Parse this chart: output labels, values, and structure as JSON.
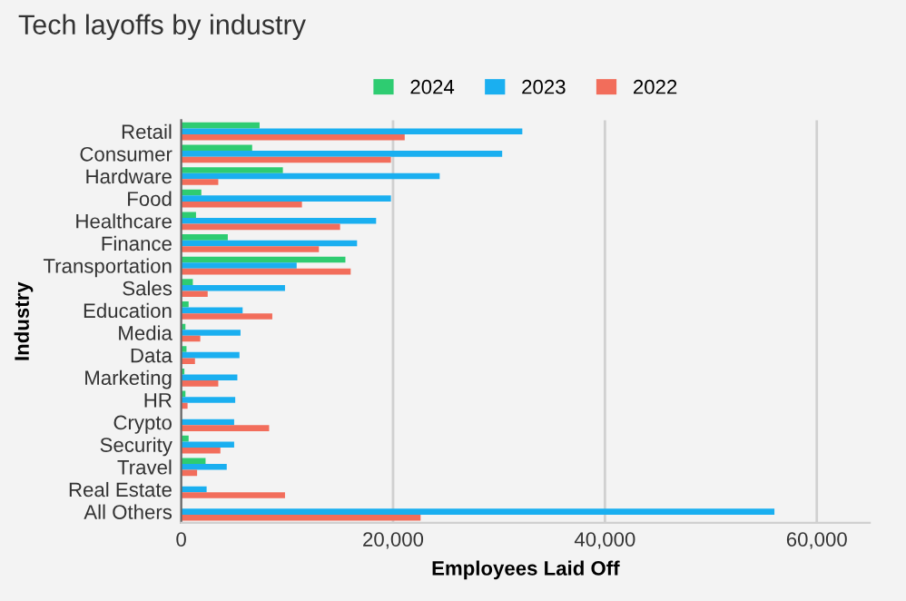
{
  "chart_data": {
    "type": "bar",
    "orientation": "horizontal",
    "title": "Tech layoffs by industry",
    "xlabel": "Employees Laid Off",
    "ylabel": "Industry",
    "categories": [
      "Retail",
      "Consumer",
      "Hardware",
      "Food",
      "Healthcare",
      "Finance",
      "Transportation",
      "Sales",
      "Education",
      "Media",
      "Data",
      "Marketing",
      "HR",
      "Crypto",
      "Security",
      "Travel",
      "Real Estate",
      "All Others"
    ],
    "series": [
      {
        "name": "2024",
        "color": "#2ecc71",
        "values": [
          7400,
          6700,
          9600,
          1900,
          1400,
          4400,
          15500,
          1100,
          700,
          400,
          500,
          300,
          400,
          null,
          700,
          2300,
          null,
          null
        ]
      },
      {
        "name": "2023",
        "color": "#1aaff0",
        "values": [
          32200,
          30300,
          24400,
          19800,
          18400,
          16600,
          10900,
          9800,
          5800,
          5600,
          5500,
          5300,
          5100,
          5000,
          5000,
          4300,
          2400,
          56000
        ]
      },
      {
        "name": "2022",
        "color": "#f26d5b",
        "values": [
          21100,
          19800,
          3500,
          11400,
          15000,
          13000,
          16000,
          2500,
          8600,
          1800,
          1300,
          3500,
          600,
          8300,
          3700,
          1500,
          9800,
          22600
        ]
      }
    ],
    "xlim": [
      0,
      65000
    ],
    "xticks": [
      0,
      {
        "value": 20000,
        "label": "20,000"
      },
      {
        "value": 40000,
        "label": "40,000"
      },
      {
        "value": 60000,
        "label": "60,000"
      }
    ],
    "grid": "x",
    "legend": "top"
  }
}
